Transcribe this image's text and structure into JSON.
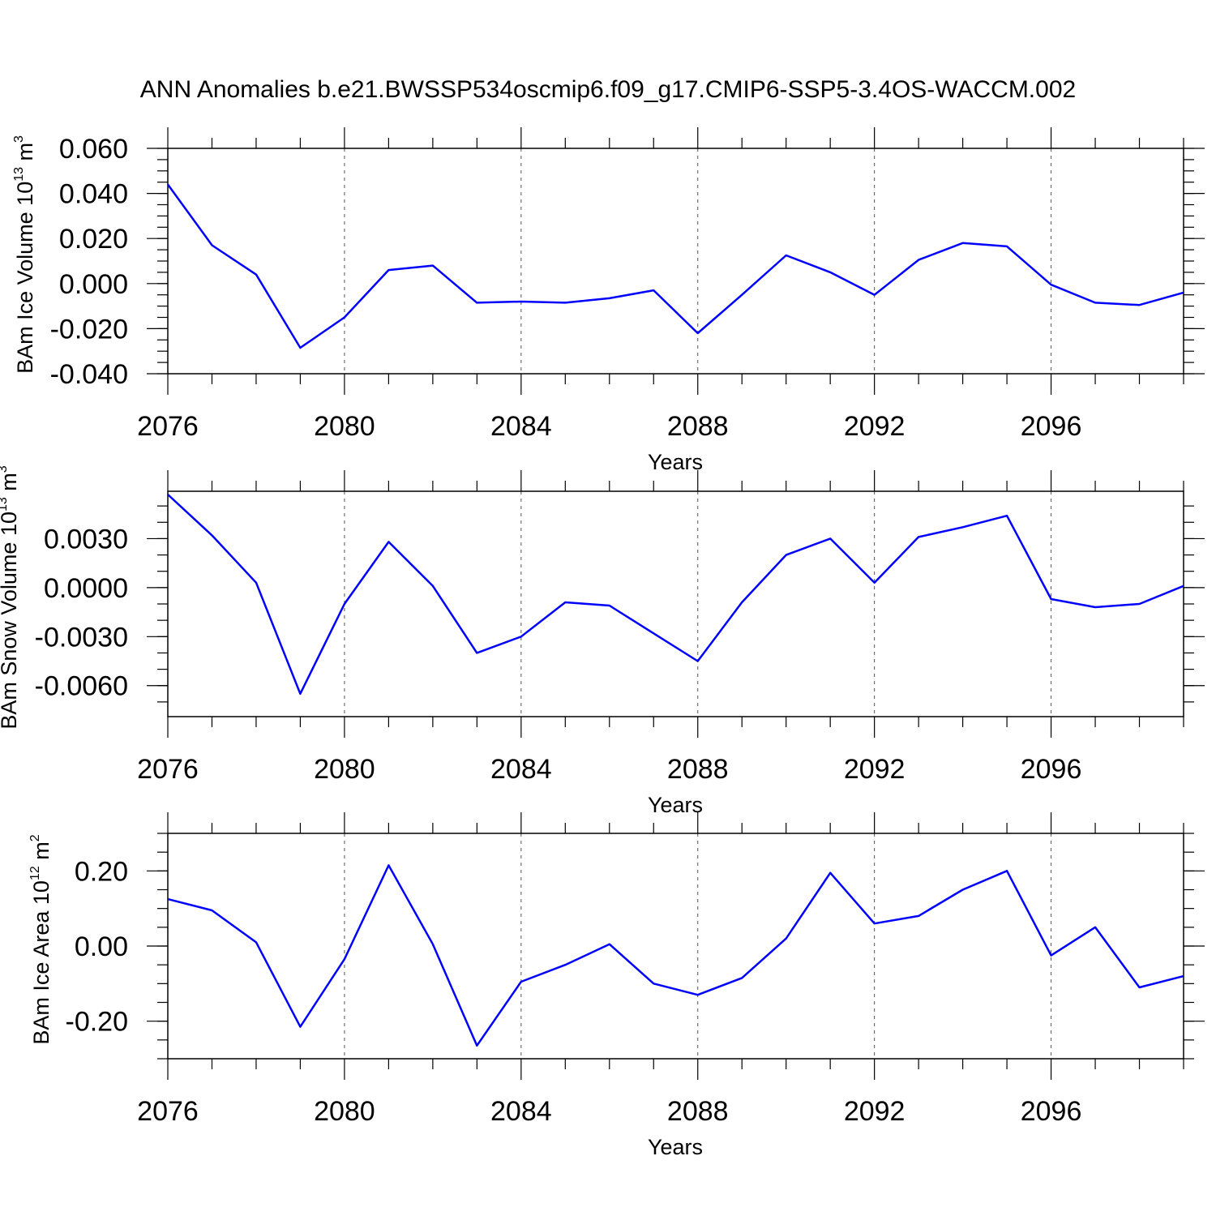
{
  "figure_title": "ANN Anomalies b.e21.BWSSP534oscmip6.f09_g17.CMIP6-SSP5-3.4OS-WACCM.002",
  "colors": {
    "line": "#0000ff",
    "axis": "#000000",
    "grid": "#555555",
    "background": "#ffffff"
  },
  "chart_data": [
    {
      "type": "line",
      "title": "",
      "xlabel": "Years",
      "ylabel": {
        "prefix": "BAm Ice Volume 10",
        "exponent": "13",
        "unit": " m",
        "unit_power": "3"
      },
      "xlim": [
        2076,
        2099
      ],
      "ylim": [
        -0.04,
        0.06
      ],
      "x_ticks": [
        2076,
        2080,
        2084,
        2088,
        2092,
        2096
      ],
      "x_tick_labels": [
        "2076",
        "2080",
        "2084",
        "2088",
        "2092",
        "2096"
      ],
      "y_ticks": [
        -0.04,
        -0.02,
        0.0,
        0.02,
        0.04,
        0.06
      ],
      "y_tick_labels": [
        "-0.040",
        "-0.020",
        "0.000",
        "0.020",
        "0.040",
        "0.060"
      ],
      "y_minor_step": 0.005,
      "grid_x": [
        2080,
        2084,
        2088,
        2092,
        2096
      ],
      "x": [
        2076,
        2077,
        2078,
        2079,
        2080,
        2081,
        2082,
        2083,
        2084,
        2085,
        2086,
        2087,
        2088,
        2089,
        2090,
        2091,
        2092,
        2093,
        2094,
        2095,
        2096,
        2097,
        2098,
        2099
      ],
      "series": [
        {
          "name": "BAm Ice Volume",
          "values": [
            0.044,
            0.017,
            0.004,
            -0.0285,
            -0.015,
            0.006,
            0.008,
            -0.0085,
            -0.008,
            -0.0085,
            -0.0065,
            -0.003,
            -0.022,
            -0.005,
            0.0125,
            0.005,
            -0.005,
            0.0105,
            0.018,
            0.0165,
            -0.0005,
            -0.0085,
            -0.0095,
            -0.004
          ]
        }
      ]
    },
    {
      "type": "line",
      "title": "",
      "xlabel": "Years",
      "ylabel": {
        "prefix": "BAm Snow Volume 10",
        "exponent": "13",
        "unit": " m",
        "unit_power": "3"
      },
      "xlim": [
        2076,
        2099
      ],
      "ylim": [
        -0.0079,
        0.0059
      ],
      "x_ticks": [
        2076,
        2080,
        2084,
        2088,
        2092,
        2096
      ],
      "x_tick_labels": [
        "2076",
        "2080",
        "2084",
        "2088",
        "2092",
        "2096"
      ],
      "y_ticks": [
        -0.006,
        -0.003,
        0.0,
        0.003
      ],
      "y_tick_labels": [
        "-0.0060",
        "-0.0030",
        "0.0000",
        "0.0030"
      ],
      "y_minor_step": 0.001,
      "grid_x": [
        2080,
        2084,
        2088,
        2092,
        2096
      ],
      "x": [
        2076,
        2077,
        2078,
        2079,
        2080,
        2081,
        2082,
        2083,
        2084,
        2085,
        2086,
        2087,
        2088,
        2089,
        2090,
        2091,
        2092,
        2093,
        2094,
        2095,
        2096,
        2097,
        2098,
        2099
      ],
      "series": [
        {
          "name": "BAm Snow Volume",
          "values": [
            0.0057,
            0.0032,
            0.0003,
            -0.0065,
            -0.001,
            0.0028,
            0.0001,
            -0.004,
            -0.003,
            -0.0009,
            -0.0011,
            -0.0028,
            -0.0045,
            -0.0009,
            0.002,
            0.003,
            0.0003,
            0.0031,
            0.0037,
            0.0044,
            -0.0007,
            -0.0012,
            -0.001,
            0.0001
          ]
        }
      ]
    },
    {
      "type": "line",
      "title": "",
      "xlabel": "Years",
      "ylabel": {
        "prefix": "BAm Ice Area 10",
        "exponent": "12",
        "unit": " m",
        "unit_power": "2"
      },
      "xlim": [
        2076,
        2099
      ],
      "ylim": [
        -0.3,
        0.3
      ],
      "x_ticks": [
        2076,
        2080,
        2084,
        2088,
        2092,
        2096
      ],
      "x_tick_labels": [
        "2076",
        "2080",
        "2084",
        "2088",
        "2092",
        "2096"
      ],
      "y_ticks": [
        -0.2,
        0.0,
        0.2
      ],
      "y_tick_labels": [
        "-0.20",
        "0.00",
        "0.20"
      ],
      "y_minor_step": 0.05,
      "grid_x": [
        2080,
        2084,
        2088,
        2092,
        2096
      ],
      "x": [
        2076,
        2077,
        2078,
        2079,
        2080,
        2081,
        2082,
        2083,
        2084,
        2085,
        2086,
        2087,
        2088,
        2089,
        2090,
        2091,
        2092,
        2093,
        2094,
        2095,
        2096,
        2097,
        2098,
        2099
      ],
      "series": [
        {
          "name": "BAm Ice Area",
          "values": [
            0.125,
            0.095,
            0.01,
            -0.215,
            -0.035,
            0.215,
            0.005,
            -0.265,
            -0.095,
            -0.05,
            0.005,
            -0.1,
            -0.13,
            -0.085,
            0.02,
            0.195,
            0.06,
            0.08,
            0.15,
            0.2,
            -0.025,
            0.05,
            -0.11,
            -0.08
          ]
        }
      ]
    }
  ]
}
